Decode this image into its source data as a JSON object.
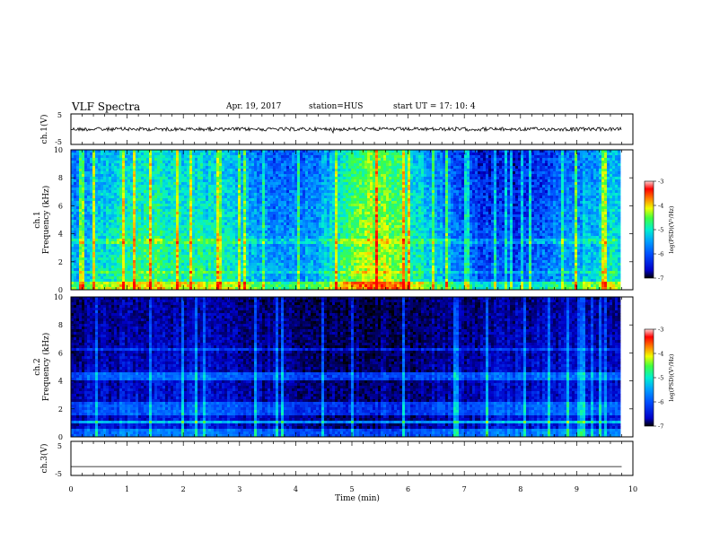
{
  "header": {
    "title": "VLF Spectra",
    "date": "Apr. 19, 2017",
    "station": "station=HUS",
    "start": "start  UT =   17: 10: 4"
  },
  "chart_data": [
    {
      "type": "line",
      "title": "",
      "ylabel": "ch.1(V)",
      "xlim": [
        0,
        10
      ],
      "ylim": [
        -5,
        5
      ],
      "yticks": [
        "5",
        "-5"
      ],
      "description_values": {
        "mean": 0.0,
        "noise_amplitude": 0.6
      }
    },
    {
      "type": "heatmap",
      "ylabel": "ch.1\nFrequency (kHz)",
      "ylabel_line1": "ch.1",
      "ylabel_line2": "Frequency (kHz)",
      "xlim": [
        0,
        10
      ],
      "ylim": [
        0,
        10
      ],
      "yticks": [
        "0",
        "2",
        "4",
        "6",
        "8",
        "10"
      ],
      "colorbar": {
        "label": "log(PSD)(V²/Hz)",
        "range": [
          -7,
          -3
        ],
        "ticks": [
          "-3",
          "-4",
          "-5",
          "-6",
          "-7"
        ]
      },
      "data_end_min": 9.8
    },
    {
      "type": "heatmap",
      "ylabel_line1": "ch.2",
      "ylabel_line2": "Frequency (kHz)",
      "xlim": [
        0,
        10
      ],
      "ylim": [
        0,
        10
      ],
      "yticks": [
        "0",
        "2",
        "4",
        "6",
        "8",
        "10"
      ],
      "colorbar": {
        "label": "log(PSD)(V²/Hz)",
        "range": [
          -7,
          -3
        ],
        "ticks": [
          "-3",
          "-4",
          "-5",
          "-6",
          "-7"
        ]
      },
      "data_end_min": 9.8
    },
    {
      "type": "line",
      "ylabel": "ch.3(V)",
      "xlim": [
        0,
        10
      ],
      "ylim": [
        -5,
        5
      ],
      "yticks": [
        "5",
        "-5"
      ],
      "values": [
        {
          "x": 0,
          "y": -2.4
        },
        {
          "x": 9.8,
          "y": -2.4
        }
      ]
    }
  ],
  "xaxis": {
    "label": "Time (min)",
    "ticks": [
      "0",
      "1",
      "2",
      "3",
      "4",
      "5",
      "6",
      "7",
      "8",
      "9",
      "10"
    ]
  },
  "colors": {
    "background": "#ffffff",
    "colormap": [
      "#000000",
      "#0000c8",
      "#0050ff",
      "#00a0ff",
      "#00f0d0",
      "#40ff40",
      "#f0ff00",
      "#ff8000",
      "#ff0000",
      "#ffc8c8"
    ]
  }
}
